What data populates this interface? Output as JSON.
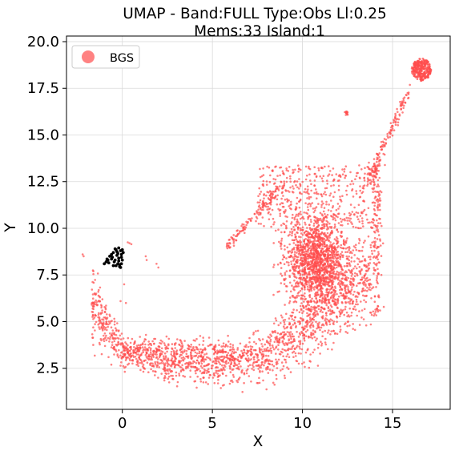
{
  "chart_data": {
    "type": "scatter",
    "title_line1": "UMAP  -  Band:FULL Type:Obs Ll:0.25",
    "title_line2": "Mems:33 Island:1",
    "xlabel": "X",
    "ylabel": "Y",
    "xlim": [
      -3.1,
      18.2
    ],
    "ylim": [
      0.3,
      20.3
    ],
    "xticks": [
      0,
      5,
      10,
      15
    ],
    "yticks": [
      2.5,
      5.0,
      7.5,
      10.0,
      12.5,
      15.0,
      17.5,
      20.0
    ],
    "xtick_labels": [
      "0",
      "5",
      "10",
      "15"
    ],
    "ytick_labels": [
      "2.5",
      "5.0",
      "7.5",
      "10.0",
      "12.5",
      "15.0",
      "17.5",
      "20.0"
    ],
    "grid": true,
    "legend_position": "top-left",
    "series": [
      {
        "name": "BGS",
        "color": "#ff4d4d",
        "shape_regions": [
          {
            "desc": "main crescent body",
            "x_range": [
              -1.8,
              14.8
            ],
            "y_range": [
              1.3,
              13.5
            ]
          },
          {
            "desc": "upper-right tail",
            "x_range": [
              13.5,
              16.0
            ],
            "y_range": [
              12.0,
              17.5
            ]
          },
          {
            "desc": "top-right cluster",
            "center": [
              16.6,
              18.5
            ],
            "radius": 0.6
          },
          {
            "desc": "small cluster",
            "center": [
              12.5,
              16.2
            ],
            "radius": 0.2
          }
        ]
      },
      {
        "name": "",
        "color": "#000000",
        "points": [
          [
            -1.0,
            8.1
          ],
          [
            -0.9,
            8.2
          ],
          [
            -0.85,
            8.35
          ],
          [
            -0.8,
            8.3
          ],
          [
            -0.7,
            8.5
          ],
          [
            -0.6,
            8.6
          ],
          [
            -0.55,
            8.45
          ],
          [
            -0.5,
            8.7
          ],
          [
            -0.45,
            8.2
          ],
          [
            -0.4,
            8.9
          ],
          [
            -0.35,
            8.0
          ],
          [
            -0.3,
            8.75
          ],
          [
            -0.25,
            8.1
          ],
          [
            -0.2,
            8.95
          ],
          [
            -0.15,
            7.95
          ],
          [
            -0.1,
            8.8
          ],
          [
            -0.05,
            8.6
          ],
          [
            0.0,
            8.3
          ],
          [
            -0.05,
            8.1
          ],
          [
            -0.2,
            8.4
          ],
          [
            -0.3,
            8.55
          ],
          [
            -0.15,
            8.05
          ],
          [
            0.0,
            8.85
          ],
          [
            -0.1,
            7.9
          ],
          [
            -0.25,
            8.65
          ],
          [
            -0.4,
            8.3
          ],
          [
            -0.6,
            8.35
          ],
          [
            -0.75,
            8.15
          ],
          [
            -0.05,
            8.45
          ],
          [
            -0.35,
            8.85
          ],
          [
            0.05,
            8.7
          ],
          [
            -0.2,
            8.25
          ],
          [
            -0.5,
            8.0
          ]
        ]
      }
    ]
  }
}
